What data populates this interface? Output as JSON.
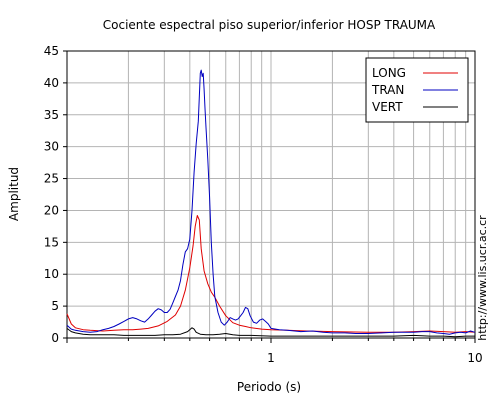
{
  "chart_data": {
    "type": "line",
    "title": "Cociente espectral piso superior/inferior  HOSP TRAUMA",
    "xlabel": "Periodo (s)",
    "ylabel": "Amplitud",
    "x_scale": "log",
    "xlim": [
      0.1,
      10
    ],
    "ylim": [
      0,
      45
    ],
    "x_tick_labels": [
      {
        "value": 1,
        "label": "1"
      },
      {
        "value": 10,
        "label": "10"
      }
    ],
    "y_ticks": [
      0,
      5,
      10,
      15,
      20,
      25,
      30,
      35,
      40,
      45
    ],
    "grid": true,
    "legend_position": "top-right",
    "side_text": "http://www.lis.ucr.ac.cr",
    "series": [
      {
        "name": "LONG",
        "color": "#e00000",
        "points": [
          [
            0.1,
            3.8
          ],
          [
            0.105,
            2.2
          ],
          [
            0.11,
            1.6
          ],
          [
            0.12,
            1.3
          ],
          [
            0.13,
            1.2
          ],
          [
            0.15,
            1.1
          ],
          [
            0.17,
            1.2
          ],
          [
            0.19,
            1.3
          ],
          [
            0.21,
            1.3
          ],
          [
            0.23,
            1.4
          ],
          [
            0.25,
            1.5
          ],
          [
            0.28,
            1.9
          ],
          [
            0.31,
            2.6
          ],
          [
            0.34,
            3.6
          ],
          [
            0.36,
            5.0
          ],
          [
            0.38,
            7.5
          ],
          [
            0.4,
            11.0
          ],
          [
            0.415,
            14.5
          ],
          [
            0.425,
            17.5
          ],
          [
            0.435,
            19.2
          ],
          [
            0.445,
            18.5
          ],
          [
            0.455,
            14.0
          ],
          [
            0.47,
            10.5
          ],
          [
            0.49,
            8.5
          ],
          [
            0.51,
            7.2
          ],
          [
            0.53,
            6.4
          ],
          [
            0.56,
            5.0
          ],
          [
            0.6,
            3.5
          ],
          [
            0.65,
            2.4
          ],
          [
            0.7,
            2.0
          ],
          [
            0.75,
            1.8
          ],
          [
            0.8,
            1.6
          ],
          [
            0.9,
            1.4
          ],
          [
            1.0,
            1.3
          ],
          [
            1.2,
            1.2
          ],
          [
            1.5,
            1.1
          ],
          [
            2.0,
            1.0
          ],
          [
            3.0,
            0.9
          ],
          [
            4.0,
            0.9
          ],
          [
            5.0,
            1.0
          ],
          [
            6.0,
            1.1
          ],
          [
            7.0,
            1.0
          ],
          [
            8.0,
            0.9
          ],
          [
            9.0,
            1.0
          ],
          [
            10.0,
            0.9
          ]
        ]
      },
      {
        "name": "TRAN",
        "color": "#0000c0",
        "points": [
          [
            0.1,
            2.0
          ],
          [
            0.105,
            1.4
          ],
          [
            0.11,
            1.2
          ],
          [
            0.12,
            1.0
          ],
          [
            0.13,
            0.9
          ],
          [
            0.14,
            1.0
          ],
          [
            0.15,
            1.3
          ],
          [
            0.16,
            1.5
          ],
          [
            0.17,
            1.8
          ],
          [
            0.18,
            2.2
          ],
          [
            0.19,
            2.6
          ],
          [
            0.2,
            3.0
          ],
          [
            0.21,
            3.2
          ],
          [
            0.22,
            3.0
          ],
          [
            0.23,
            2.7
          ],
          [
            0.24,
            2.5
          ],
          [
            0.25,
            3.0
          ],
          [
            0.26,
            3.6
          ],
          [
            0.27,
            4.2
          ],
          [
            0.28,
            4.6
          ],
          [
            0.29,
            4.4
          ],
          [
            0.3,
            4.0
          ],
          [
            0.31,
            4.0
          ],
          [
            0.32,
            4.5
          ],
          [
            0.33,
            5.5
          ],
          [
            0.34,
            6.5
          ],
          [
            0.35,
            7.5
          ],
          [
            0.36,
            9.0
          ],
          [
            0.37,
            11.5
          ],
          [
            0.38,
            13.5
          ],
          [
            0.39,
            14.0
          ],
          [
            0.4,
            15.5
          ],
          [
            0.41,
            20.0
          ],
          [
            0.42,
            26.0
          ],
          [
            0.43,
            30.5
          ],
          [
            0.44,
            34.0
          ],
          [
            0.45,
            41.5
          ],
          [
            0.455,
            42.0
          ],
          [
            0.46,
            41.0
          ],
          [
            0.465,
            41.5
          ],
          [
            0.47,
            39.0
          ],
          [
            0.475,
            36.0
          ],
          [
            0.48,
            33.0
          ],
          [
            0.49,
            28.0
          ],
          [
            0.5,
            22.0
          ],
          [
            0.51,
            15.0
          ],
          [
            0.52,
            10.0
          ],
          [
            0.53,
            6.5
          ],
          [
            0.55,
            4.0
          ],
          [
            0.57,
            2.5
          ],
          [
            0.59,
            2.0
          ],
          [
            0.61,
            2.5
          ],
          [
            0.63,
            3.2
          ],
          [
            0.65,
            3.0
          ],
          [
            0.67,
            2.8
          ],
          [
            0.69,
            3.0
          ],
          [
            0.71,
            3.5
          ],
          [
            0.73,
            4.0
          ],
          [
            0.75,
            4.8
          ],
          [
            0.77,
            4.6
          ],
          [
            0.79,
            3.5
          ],
          [
            0.82,
            2.5
          ],
          [
            0.85,
            2.3
          ],
          [
            0.88,
            2.8
          ],
          [
            0.91,
            3.0
          ],
          [
            0.94,
            2.6
          ],
          [
            0.97,
            2.2
          ],
          [
            1.0,
            1.5
          ],
          [
            1.1,
            1.3
          ],
          [
            1.2,
            1.2
          ],
          [
            1.4,
            1.0
          ],
          [
            1.6,
            1.1
          ],
          [
            1.8,
            0.9
          ],
          [
            2.0,
            0.8
          ],
          [
            2.3,
            0.8
          ],
          [
            2.6,
            0.7
          ],
          [
            3.0,
            0.7
          ],
          [
            3.5,
            0.8
          ],
          [
            4.0,
            0.9
          ],
          [
            4.5,
            0.9
          ],
          [
            5.0,
            0.9
          ],
          [
            5.5,
            1.0
          ],
          [
            6.0,
            1.0
          ],
          [
            6.5,
            0.8
          ],
          [
            7.0,
            0.7
          ],
          [
            7.5,
            0.6
          ],
          [
            8.0,
            0.8
          ],
          [
            8.5,
            0.9
          ],
          [
            9.0,
            0.8
          ],
          [
            9.5,
            1.1
          ],
          [
            10.0,
            0.9
          ]
        ]
      },
      {
        "name": "VERT",
        "color": "#000000",
        "points": [
          [
            0.1,
            1.5
          ],
          [
            0.105,
            1.0
          ],
          [
            0.11,
            0.8
          ],
          [
            0.12,
            0.6
          ],
          [
            0.13,
            0.5
          ],
          [
            0.15,
            0.5
          ],
          [
            0.17,
            0.5
          ],
          [
            0.19,
            0.4
          ],
          [
            0.21,
            0.4
          ],
          [
            0.24,
            0.4
          ],
          [
            0.27,
            0.4
          ],
          [
            0.3,
            0.5
          ],
          [
            0.33,
            0.5
          ],
          [
            0.36,
            0.6
          ],
          [
            0.39,
            1.0
          ],
          [
            0.41,
            1.6
          ],
          [
            0.42,
            1.4
          ],
          [
            0.43,
            0.9
          ],
          [
            0.45,
            0.6
          ],
          [
            0.48,
            0.5
          ],
          [
            0.52,
            0.5
          ],
          [
            0.56,
            0.6
          ],
          [
            0.6,
            0.7
          ],
          [
            0.65,
            0.5
          ],
          [
            0.7,
            0.4
          ],
          [
            0.8,
            0.4
          ],
          [
            1.0,
            0.3
          ],
          [
            1.3,
            0.3
          ],
          [
            1.6,
            0.3
          ],
          [
            2.0,
            0.3
          ],
          [
            2.5,
            0.3
          ],
          [
            3.0,
            0.3
          ],
          [
            4.0,
            0.3
          ],
          [
            5.0,
            0.4
          ],
          [
            6.0,
            0.3
          ],
          [
            7.0,
            0.3
          ],
          [
            8.0,
            0.2
          ],
          [
            9.0,
            0.3
          ],
          [
            10.0,
            0.3
          ]
        ]
      }
    ]
  }
}
